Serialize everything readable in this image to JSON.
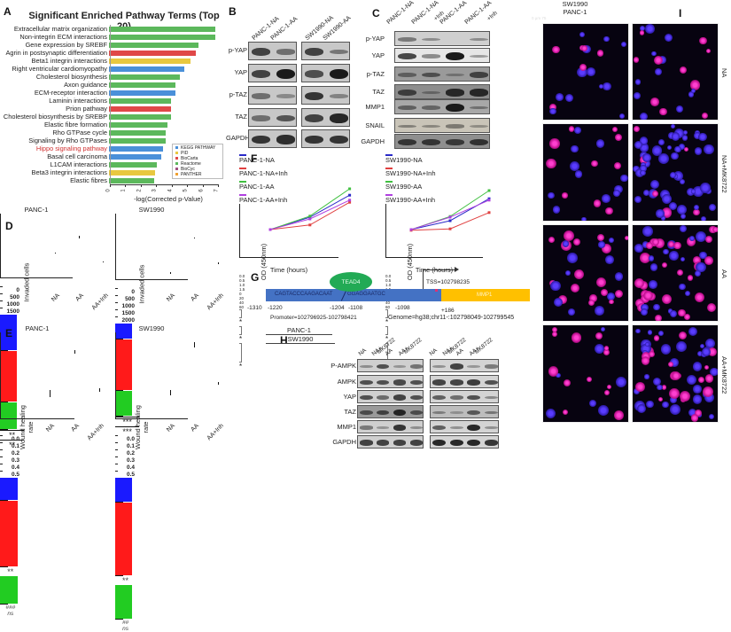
{
  "panels": {
    "A": {
      "label": "A"
    },
    "B": {
      "label": "B"
    },
    "C": {
      "label": "C"
    },
    "D": {
      "label": "D"
    },
    "E": {
      "label": "E"
    },
    "F": {
      "label": "F"
    },
    "G": {
      "label": "G"
    },
    "H": {
      "label": "H"
    },
    "I": {
      "label": "I"
    }
  },
  "chart_data": [
    {
      "id": "A",
      "type": "bar",
      "orientation": "horizontal",
      "title": "Significant Enriched Pathway Terms (Top 20)",
      "xlabel": "-log(Corrected p-Value)",
      "xlim": [
        0,
        7
      ],
      "xticks": [
        "0",
        "1",
        "2",
        "3",
        "4",
        "5",
        "6",
        "7"
      ],
      "categories": [
        "Extracellular matrix organization",
        "Non-integrin ECM interactions",
        "Gene expression by SREBF",
        "Agrin in postsynaptic differentiation",
        "Beta1 integrin  interactions",
        "Right ventricular cardiomyopathy",
        "Cholesterol biosynthesis",
        "Axon guidance",
        "ECM-receptor interaction",
        "Laminin interactions",
        "Prion pathway",
        "Cholesterol biosynthesis by SREBP",
        "Elastic fibre formation",
        "Rho GTPase cycle",
        "Signaling by Rho GTPases",
        "Hippo signaling pathway",
        "Basal cell carcinoma",
        "L1CAM interactions",
        "Beta3 integrin  interactions",
        "Elastic fibres"
      ],
      "values": [
        6.9,
        6.9,
        5.8,
        5.6,
        5.3,
        4.9,
        4.6,
        4.3,
        4.3,
        4.0,
        4.0,
        4.0,
        3.8,
        3.7,
        3.7,
        3.5,
        3.4,
        3.1,
        3.0,
        2.9
      ],
      "sources": [
        "Reactome",
        "Reactome",
        "Reactome",
        "BioCarta",
        "PID",
        "KEGG PATHWAY",
        "Reactome",
        "Reactome",
        "KEGG PATHWAY",
        "Reactome",
        "BioCarta",
        "Reactome",
        "Reactome",
        "Reactome",
        "Reactome",
        "KEGG PATHWAY",
        "KEGG PATHWAY",
        "Reactome",
        "PID",
        "Reactome"
      ],
      "highlighted": "Hippo signaling pathway",
      "legend": [
        {
          "name": "KEGG PATHWAY",
          "color": "#4a90d9"
        },
        {
          "name": "PID",
          "color": "#e8c840"
        },
        {
          "name": "BioCarta",
          "color": "#e04848"
        },
        {
          "name": "Reactome",
          "color": "#5cb85c"
        },
        {
          "name": "BioCyc",
          "color": "#a05080"
        },
        {
          "name": "PANTHER",
          "color": "#f0a030"
        }
      ],
      "legend_position": "lower right"
    },
    {
      "id": "D-PANC-1",
      "type": "bar",
      "title": "PANC-1",
      "ylabel": "Invaded cells",
      "ylim": [
        0,
        1500
      ],
      "yticks": [
        "0",
        "500",
        "1000",
        "1500"
      ],
      "categories": [
        "NA",
        "AA",
        "AA+Inh"
      ],
      "values": [
        830,
        1190,
        620
      ],
      "errors": [
        30,
        60,
        25
      ],
      "colors": [
        "#1a1aff",
        "#ff1a1a",
        "#22cc22"
      ],
      "annotations": [
        {
          "between": [
            "NA",
            "AA"
          ],
          "text": "**"
        },
        {
          "between": [
            "AA",
            "AA+Inh"
          ],
          "text": "**"
        }
      ]
    },
    {
      "id": "D-SW1990",
      "type": "bar",
      "title": "SW1990",
      "ylabel": "Invaded cells",
      "ylim": [
        0,
        2000
      ],
      "yticks": [
        "0",
        "500",
        "1000",
        "1500",
        "2000"
      ],
      "categories": [
        "NA",
        "AA",
        "AA+Inh"
      ],
      "values": [
        460,
        1540,
        770
      ],
      "errors": [
        60,
        40,
        50
      ],
      "colors": [
        "#1a1aff",
        "#ff1a1a",
        "#22cc22"
      ],
      "annotations": [
        {
          "between": [
            "NA",
            "AA"
          ],
          "text": "***"
        },
        {
          "between": [
            "AA",
            "AA+Inh"
          ],
          "text": "***"
        }
      ]
    },
    {
      "id": "E-PANC-1",
      "type": "bar",
      "title": "PANC-1",
      "ylabel": "Wound healing rate",
      "ylim": [
        0,
        0.5
      ],
      "yticks": [
        "0.0",
        "0.1",
        "0.2",
        "0.3",
        "0.4",
        "0.5"
      ],
      "categories": [
        "NA",
        "AA",
        "AA+Inh"
      ],
      "values": [
        0.13,
        0.38,
        0.16
      ],
      "errors": [
        0.04,
        0.02,
        0.02
      ],
      "colors": [
        "#1a1aff",
        "#ff1a1a",
        "#22cc22"
      ],
      "bar_annotations": [
        "",
        "**",
        "###\nns"
      ]
    },
    {
      "id": "E-SW1990",
      "type": "bar",
      "title": "SW1990",
      "ylabel": "Wound healing rate",
      "ylim": [
        0,
        0.5
      ],
      "yticks": [
        "0.0",
        "0.1",
        "0.2",
        "0.3",
        "0.4",
        "0.5"
      ],
      "categories": [
        "NA",
        "AA",
        "AA+Inh"
      ],
      "values": [
        0.14,
        0.42,
        0.2
      ],
      "errors": [
        0.03,
        0.03,
        0.015
      ],
      "colors": [
        "#1a1aff",
        "#ff1a1a",
        "#22cc22"
      ],
      "bar_annotations": [
        "",
        "**",
        "##\nns"
      ]
    },
    {
      "id": "F-PANC-1",
      "type": "line",
      "xlabel": "Time (hours)",
      "ylabel": "OD (450nm)",
      "xlim": [
        0,
        60
      ],
      "ylim": [
        0,
        1.5
      ],
      "xticks": [
        "0",
        "20",
        "40",
        "60"
      ],
      "yticks": [
        "0.0",
        "0.5",
        "1.0",
        "1.5"
      ],
      "x": [
        0,
        24,
        48
      ],
      "series": [
        {
          "name": "PANC-1-NA",
          "color": "#2a2ac8",
          "values": [
            0.2,
            0.55,
            1.17
          ]
        },
        {
          "name": "PANC-1-NA+Inh",
          "color": "#e04040",
          "values": [
            0.2,
            0.33,
            0.97
          ]
        },
        {
          "name": "PANC-1-AA",
          "color": "#40c040",
          "values": [
            0.2,
            0.58,
            1.35
          ]
        },
        {
          "name": "PANC-1-AA+Inh",
          "color": "#b040e0",
          "values": [
            0.2,
            0.5,
            1.03
          ]
        }
      ],
      "significance": [
        "*",
        "*",
        "*"
      ]
    },
    {
      "id": "F-SW1990",
      "type": "line",
      "xlabel": "Time (hours)",
      "ylabel": "OD (450nm)",
      "xlim": [
        0,
        60
      ],
      "ylim": [
        0,
        1.5
      ],
      "xticks": [
        "0",
        "20",
        "40",
        "60"
      ],
      "yticks": [
        "0.0",
        "0.5",
        "1.0",
        "1.5"
      ],
      "x": [
        0,
        24,
        48
      ],
      "series": [
        {
          "name": "SW1990-NA",
          "color": "#2a2ac8",
          "values": [
            0.2,
            0.45,
            1.07
          ]
        },
        {
          "name": "SW1990-NA+Inh",
          "color": "#e04040",
          "values": [
            0.18,
            0.22,
            0.68
          ]
        },
        {
          "name": "SW1990-AA",
          "color": "#40c040",
          "values": [
            0.2,
            0.57,
            1.3
          ]
        },
        {
          "name": "SW1990-AA+Inh",
          "color": "#b040e0",
          "values": [
            0.2,
            0.55,
            1.03
          ]
        }
      ],
      "significance": [
        "*",
        "*",
        "**"
      ]
    }
  ],
  "panelA": {
    "title": "Significant Enriched Pathway Terms (Top 20)",
    "xlabel": "-log(Corrected p-Value)"
  },
  "panelB": {
    "lanes": [
      "PANC-1-NA",
      "PANC-1-AA",
      "SW1990-NA",
      "SW1990-AA"
    ],
    "rows": [
      "p-YAP",
      "YAP",
      "p-TAZ",
      "TAZ",
      "GAPDH"
    ]
  },
  "panelC": {
    "lanes": [
      "PANC-1-NA",
      "PANC-1-NA\n+Inh",
      "PANC-1-AA",
      "PANC-1-AA\n+Inh"
    ],
    "lane_main": [
      "PANC-1-NA",
      "PANC-1-NA",
      "PANC-1-AA",
      "PANC-1-AA"
    ],
    "lane_sub": [
      "",
      "+Inh",
      "",
      "+Inh"
    ],
    "rows": [
      "p-YAP",
      "YAP",
      "p-TAZ",
      "TAZ",
      "MMP1",
      "SNAIL",
      "GAPDH"
    ]
  },
  "panelD": {
    "ylabel": "Invaded cells",
    "titles": [
      "PANC-1",
      "SW1990"
    ],
    "xcats": [
      "NA",
      "AA",
      "AA+Inh"
    ]
  },
  "panelE": {
    "ylabel": "Wound healing rate",
    "titles": [
      "PANC-1",
      "SW1990"
    ],
    "xcats": [
      "NA",
      "AA",
      "AA+Inh"
    ]
  },
  "panelF": {
    "xlabel": "Time (hours)",
    "ylabel": "OD (450nm)"
  },
  "panelG": {
    "tf": "TEAD4",
    "seq1": "CAGTACCCAAGACAAT",
    "seq2": "GGAGGAATGC",
    "gene": "MMP1",
    "tss": "TSS=102798235",
    "positions": [
      "-1310",
      "-1220",
      "-1204",
      "-1108",
      "-1098",
      "+186"
    ],
    "promoter": "Promoter=102796925-102798421",
    "genome": "Genome=hg38;chr11-:102798049-102799545"
  },
  "panelH": {
    "groups": [
      "PANC-1",
      "SW1990"
    ],
    "lanes": [
      "NA",
      "NA+\nMK8722",
      "AA",
      "AA+\nMK8722"
    ],
    "lane_a": [
      "NA",
      "NA+",
      "AA",
      "AA+"
    ],
    "lane_b": [
      "",
      "MK8722",
      "",
      "MK8722"
    ],
    "rows": [
      "P-AMPK",
      "AMPK",
      "YAP",
      "TAZ",
      "MMP1",
      "GAPDH"
    ]
  },
  "panelI": {
    "columns": [
      "SW1990",
      "PANC-1"
    ],
    "rows": [
      "NA",
      "NA+MK8722",
      "AA",
      "AA+MK8722"
    ],
    "scalebar": "0   μm   75"
  }
}
